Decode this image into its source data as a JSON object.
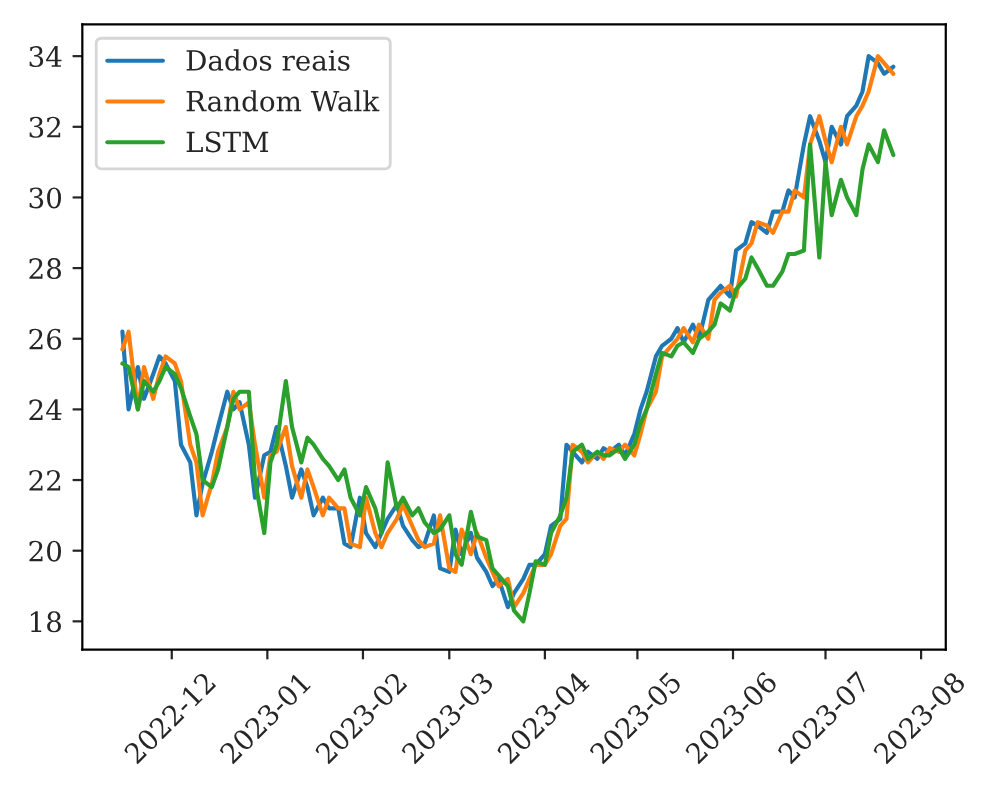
{
  "chart_data": {
    "type": "line",
    "x": [
      "2022-11-15",
      "2022-11-17",
      "2022-11-20",
      "2022-11-22",
      "2022-11-25",
      "2022-11-27",
      "2022-11-29",
      "2022-12-02",
      "2022-12-04",
      "2022-12-07",
      "2022-12-09",
      "2022-12-11",
      "2022-12-14",
      "2022-12-16",
      "2022-12-19",
      "2022-12-21",
      "2022-12-23",
      "2022-12-26",
      "2022-12-28",
      "2022-12-31",
      "2023-01-02",
      "2023-01-04",
      "2023-01-07",
      "2023-01-09",
      "2023-01-12",
      "2023-01-14",
      "2023-01-16",
      "2023-01-19",
      "2023-01-21",
      "2023-01-24",
      "2023-01-26",
      "2023-01-28",
      "2023-01-31",
      "2023-02-02",
      "2023-02-05",
      "2023-02-07",
      "2023-02-09",
      "2023-02-12",
      "2023-02-14",
      "2023-02-17",
      "2023-02-19",
      "2023-02-21",
      "2023-02-24",
      "2023-02-26",
      "2023-03-01",
      "2023-03-03",
      "2023-03-05",
      "2023-03-08",
      "2023-03-10",
      "2023-03-13",
      "2023-03-15",
      "2023-03-17",
      "2023-03-20",
      "2023-03-22",
      "2023-03-25",
      "2023-03-27",
      "2023-03-29",
      "2023-04-01",
      "2023-04-03",
      "2023-04-06",
      "2023-04-08",
      "2023-04-10",
      "2023-04-13",
      "2023-04-15",
      "2023-04-18",
      "2023-04-20",
      "2023-04-22",
      "2023-04-25",
      "2023-04-27",
      "2023-04-30",
      "2023-05-02",
      "2023-05-04",
      "2023-05-07",
      "2023-05-09",
      "2023-05-12",
      "2023-05-14",
      "2023-05-16",
      "2023-05-19",
      "2023-05-21",
      "2023-05-24",
      "2023-05-26",
      "2023-05-28",
      "2023-05-31",
      "2023-06-02",
      "2023-06-05",
      "2023-06-07",
      "2023-06-09",
      "2023-06-12",
      "2023-06-14",
      "2023-06-17",
      "2023-06-19",
      "2023-06-21",
      "2023-06-24",
      "2023-06-26",
      "2023-06-29",
      "2023-07-01",
      "2023-07-03",
      "2023-07-06",
      "2023-07-08",
      "2023-07-11",
      "2023-07-13",
      "2023-07-15",
      "2023-07-18",
      "2023-07-20",
      "2023-07-23"
    ],
    "series": [
      {
        "name": "Dados reais",
        "color": "#1f77b4",
        "values": [
          26.2,
          24.0,
          25.2,
          24.3,
          25.0,
          25.5,
          25.3,
          24.8,
          23.0,
          22.5,
          21.0,
          21.9,
          22.8,
          23.5,
          24.5,
          24.0,
          24.2,
          23.0,
          21.5,
          22.7,
          22.8,
          23.5,
          22.4,
          21.5,
          22.3,
          21.8,
          21.0,
          21.5,
          21.2,
          21.2,
          20.2,
          20.1,
          21.5,
          20.5,
          20.1,
          20.5,
          20.9,
          21.3,
          20.7,
          20.3,
          20.1,
          20.2,
          21.0,
          19.5,
          19.4,
          20.6,
          19.9,
          20.5,
          19.8,
          19.4,
          19.0,
          19.2,
          18.4,
          18.8,
          19.2,
          19.6,
          19.6,
          19.9,
          20.7,
          20.9,
          23.0,
          22.8,
          22.5,
          22.8,
          22.6,
          22.9,
          22.8,
          23.0,
          22.7,
          23.3,
          24.0,
          24.5,
          25.5,
          25.8,
          26.0,
          26.3,
          25.9,
          26.4,
          26.0,
          27.1,
          27.3,
          27.5,
          27.2,
          28.5,
          28.7,
          29.3,
          29.2,
          29.0,
          29.6,
          29.6,
          30.2,
          30.0,
          31.5,
          32.3,
          31.6,
          31.0,
          32.0,
          31.5,
          32.3,
          32.6,
          33.0,
          34.0,
          33.8,
          33.5,
          33.7
        ]
      },
      {
        "name": "Random Walk",
        "color": "#ff7f0e",
        "values": [
          25.7,
          26.2,
          24.0,
          25.2,
          24.3,
          25.0,
          25.5,
          25.3,
          24.8,
          23.0,
          22.5,
          21.0,
          21.9,
          22.8,
          23.5,
          24.5,
          24.0,
          24.2,
          23.0,
          21.5,
          22.7,
          22.8,
          23.5,
          22.4,
          21.5,
          22.3,
          21.8,
          21.0,
          21.5,
          21.2,
          21.2,
          20.2,
          20.1,
          21.5,
          20.5,
          20.1,
          20.5,
          20.9,
          21.3,
          20.7,
          20.3,
          20.1,
          20.2,
          21.0,
          19.5,
          19.4,
          20.6,
          19.9,
          20.5,
          19.8,
          19.4,
          19.0,
          19.2,
          18.4,
          18.8,
          19.2,
          19.6,
          19.6,
          19.9,
          20.7,
          20.9,
          23.0,
          22.8,
          22.5,
          22.8,
          22.6,
          22.9,
          22.8,
          23.0,
          22.7,
          23.3,
          24.0,
          24.5,
          25.5,
          25.8,
          26.0,
          26.3,
          25.9,
          26.4,
          26.0,
          27.1,
          27.3,
          27.5,
          27.2,
          28.5,
          28.7,
          29.3,
          29.2,
          29.0,
          29.6,
          29.6,
          30.2,
          30.0,
          31.5,
          32.3,
          31.6,
          31.0,
          32.0,
          31.5,
          32.3,
          32.6,
          33.0,
          34.0,
          33.8,
          33.5
        ]
      },
      {
        "name": "LSTM",
        "color": "#2ca02c",
        "values": [
          25.3,
          25.2,
          24.0,
          24.8,
          24.5,
          24.8,
          25.2,
          25.0,
          24.6,
          23.8,
          23.3,
          22.0,
          21.8,
          22.3,
          23.5,
          24.3,
          24.5,
          24.5,
          22.0,
          20.5,
          22.5,
          23.0,
          24.8,
          23.5,
          22.5,
          23.2,
          23.0,
          22.6,
          22.4,
          22.0,
          22.3,
          21.5,
          21.0,
          21.8,
          21.2,
          20.5,
          22.5,
          21.2,
          21.5,
          21.0,
          21.2,
          20.8,
          20.5,
          20.6,
          21.0,
          19.9,
          19.6,
          21.1,
          20.4,
          20.3,
          19.5,
          19.3,
          19.0,
          18.3,
          18.0,
          18.8,
          19.7,
          19.6,
          20.5,
          21.0,
          21.5,
          22.8,
          23.0,
          22.6,
          22.8,
          22.7,
          22.7,
          22.9,
          22.6,
          23.0,
          23.6,
          24.0,
          25.0,
          25.6,
          25.5,
          25.8,
          25.9,
          25.6,
          26.0,
          26.2,
          26.4,
          27.0,
          26.8,
          27.4,
          27.7,
          28.3,
          28.0,
          27.5,
          27.5,
          27.9,
          28.4,
          28.4,
          28.5,
          31.5,
          28.3,
          31.0,
          29.5,
          30.5,
          30.0,
          29.5,
          30.8,
          31.5,
          31.0,
          31.9,
          31.2
        ]
      }
    ],
    "xlim": [
      "2022-11-02",
      "2023-08-09"
    ],
    "xticks": [
      {
        "value": "2022-12-01",
        "label": "2022-12"
      },
      {
        "value": "2023-01-01",
        "label": "2023-01"
      },
      {
        "value": "2023-02-01",
        "label": "2023-02"
      },
      {
        "value": "2023-03-01",
        "label": "2023-03"
      },
      {
        "value": "2023-04-01",
        "label": "2023-04"
      },
      {
        "value": "2023-05-01",
        "label": "2023-05"
      },
      {
        "value": "2023-06-01",
        "label": "2023-06"
      },
      {
        "value": "2023-07-01",
        "label": "2023-07"
      },
      {
        "value": "2023-08-01",
        "label": "2023-08"
      }
    ],
    "ylim": [
      17.2,
      34.9
    ],
    "yticks": [
      18,
      20,
      22,
      24,
      26,
      28,
      30,
      32,
      34
    ],
    "legend": "top left",
    "grid": false,
    "line_style": "solid"
  }
}
